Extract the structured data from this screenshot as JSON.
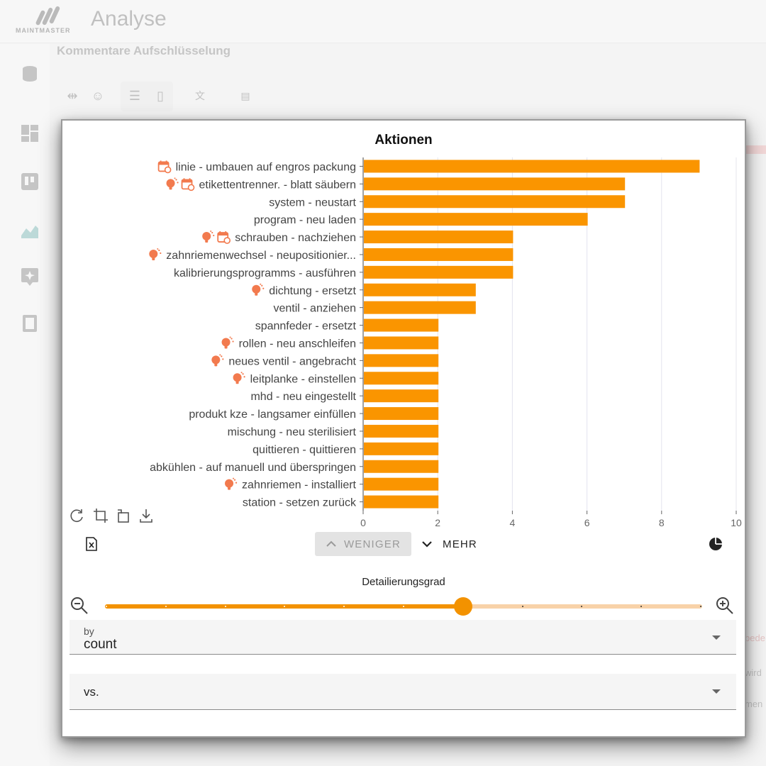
{
  "app": {
    "logo_text": "MAINTMASTER",
    "title": "Analyse",
    "subtitle": "Kommentare Aufschlüsselung",
    "right_texts": [
      "bede",
      "wird",
      "men"
    ]
  },
  "dialog": {
    "tools": [
      "refresh-icon",
      "crop-icon",
      "rotate-icon",
      "download-icon"
    ],
    "export_icon": "excel-export-icon",
    "less_label": "WENIGER",
    "more_label": "MEHR",
    "pie_icon": "pie-chart-icon",
    "slider": {
      "label": "Detailierungsgrad",
      "steps": 10,
      "value": 6
    },
    "by_field": {
      "label": "by",
      "value": "count"
    },
    "vs_field": {
      "label": "vs."
    }
  },
  "colors": {
    "bar": "#fa9500",
    "slider_fill": "#f39200",
    "slider_rail": "#f8d2a8",
    "icon": "#f27a4e"
  },
  "chart_data": {
    "type": "bar",
    "orientation": "horizontal",
    "title": "Aktionen",
    "xlabel": "",
    "ylabel": "",
    "xlim": [
      0,
      10
    ],
    "xticks": [
      0,
      2,
      4,
      6,
      8,
      10
    ],
    "grid": true,
    "categories": [
      "linie - umbauen auf engros packung",
      "etikettentrenner. - blatt säubern",
      "system - neustart",
      "program - neu laden",
      "schrauben - nachziehen",
      "zahnriemenwechsel - neupositionier...",
      "kalibrierungsprogramms - ausführen",
      "dichtung - ersetzt",
      "ventil - anziehen",
      "spannfeder - ersetzt",
      "rollen - neu anschleifen",
      "neues ventil - angebracht",
      "leitplanke - einstellen",
      "mhd - neu eingestellt",
      "produkt kze - langsamer einfüllen",
      "mischung - neu sterilisiert",
      "quittieren - quittieren",
      "abkühlen - auf manuell und überspringen",
      "zahnriemen - installiert",
      "station - setzen zurück"
    ],
    "values": [
      9,
      7,
      7,
      6,
      4,
      4,
      4,
      3,
      3,
      2,
      2,
      2,
      2,
      2,
      2,
      2,
      2,
      2,
      2,
      2
    ],
    "label_icons": [
      [
        "calendar-icon"
      ],
      [
        "bulb-icon",
        "calendar-icon"
      ],
      [],
      [],
      [
        "bulb-icon",
        "calendar-icon"
      ],
      [
        "bulb-icon"
      ],
      [],
      [
        "bulb-icon"
      ],
      [],
      [],
      [
        "bulb-icon"
      ],
      [
        "bulb-icon"
      ],
      [
        "bulb-icon"
      ],
      [],
      [],
      [],
      [],
      [],
      [
        "bulb-icon"
      ],
      []
    ]
  }
}
